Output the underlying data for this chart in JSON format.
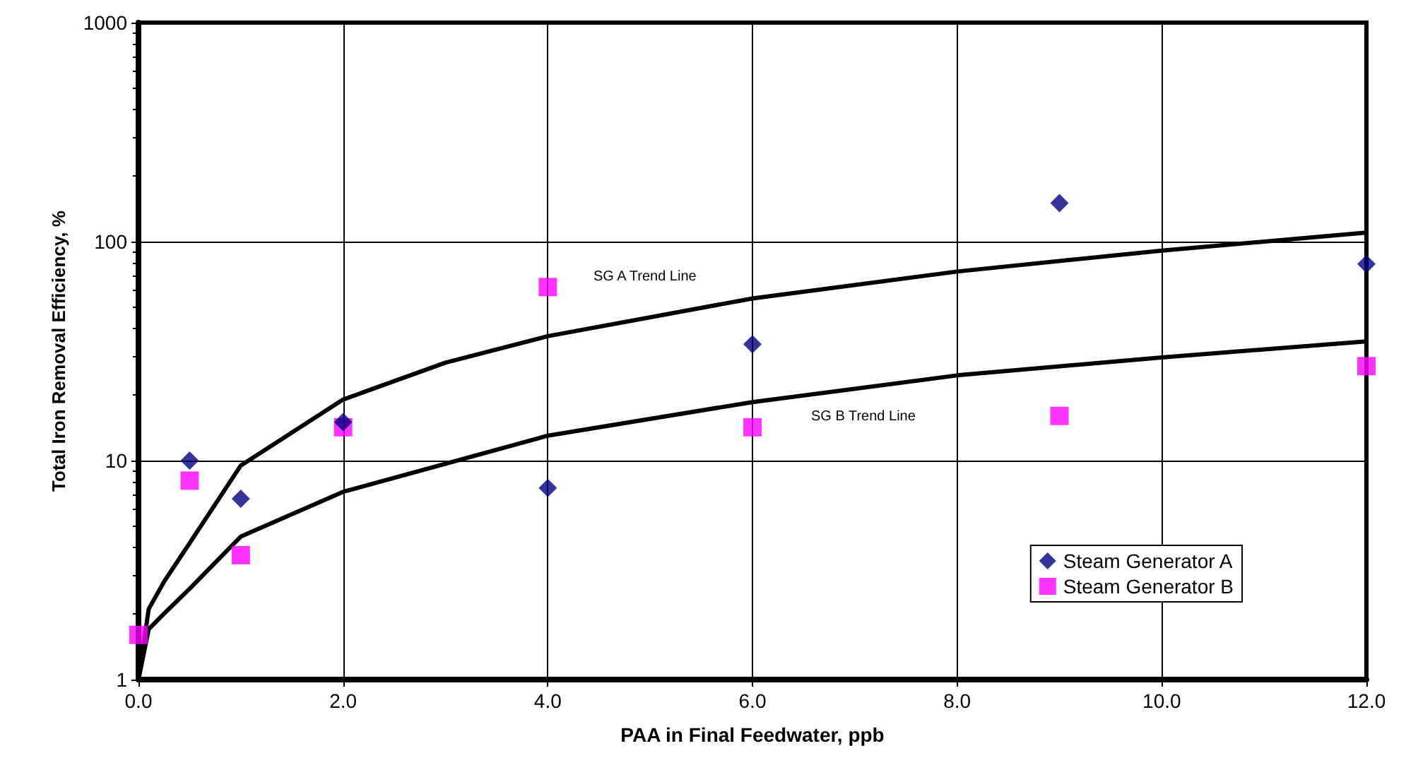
{
  "chart_data": {
    "type": "scatter",
    "xlabel": "PAA in Final Feedwater, ppb",
    "ylabel": "Total Iron Removal Efficiency, %",
    "xlim": [
      0,
      12
    ],
    "xticks": [
      {
        "value": 0,
        "label": "0.0"
      },
      {
        "value": 2,
        "label": "2.0"
      },
      {
        "value": 4,
        "label": "4.0"
      },
      {
        "value": 6,
        "label": "6.0"
      },
      {
        "value": 8,
        "label": "8.0"
      },
      {
        "value": 10,
        "label": "10.0"
      },
      {
        "value": 12,
        "label": "12.0"
      }
    ],
    "ylim": [
      1,
      1000
    ],
    "yticks": [
      1,
      10,
      100,
      1000
    ],
    "log": "y",
    "grid": true,
    "legend": "right",
    "series": [
      {
        "name": "Steam Generator A",
        "color": "#000080",
        "marker": "diamond",
        "x": [
          0.5,
          1,
          2,
          4,
          6,
          9,
          12
        ],
        "values": [
          10,
          6.7,
          15,
          7.5,
          34,
          150,
          79
        ]
      },
      {
        "name": "Steam Generator B",
        "color": "#ff00ff",
        "marker": "square",
        "x": [
          0,
          0.5,
          1,
          2,
          4,
          6,
          9,
          12
        ],
        "values": [
          1.6,
          8.1,
          3.7,
          14.2,
          62,
          14.2,
          16,
          27
        ]
      },
      {
        "type": "line",
        "color": "#000000",
        "marker": "none",
        "line_style": "solid",
        "x": [
          0,
          0.1,
          0.25,
          0.5,
          1,
          2,
          3,
          4,
          6,
          8,
          10,
          12
        ],
        "values": [
          1,
          2.1,
          2.8,
          4.2,
          9.5,
          19,
          28,
          37,
          55,
          73,
          91,
          110
        ]
      },
      {
        "type": "line",
        "color": "#000000",
        "marker": "none",
        "line_style": "solid",
        "x": [
          0,
          0.1,
          0.25,
          0.5,
          1,
          2,
          4,
          6,
          8,
          10,
          12
        ],
        "values": [
          1,
          1.7,
          2,
          2.6,
          4.5,
          7.2,
          13,
          18.5,
          24.5,
          29.6,
          35
        ]
      }
    ],
    "annotations": [
      "SG A Trend Line",
      "SG B Trend Line"
    ]
  }
}
